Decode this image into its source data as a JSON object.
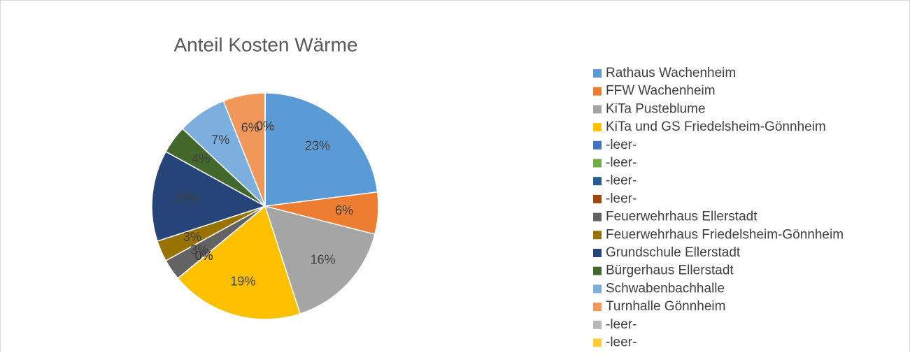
{
  "chart_data": {
    "type": "pie",
    "title": "Anteil Kosten Wärme",
    "categories": [
      "Rathaus Wachenheim",
      "FFW Wachenheim",
      "KiTa Pusteblume",
      "KiTa und GS Friedelsheim-Gönnheim",
      "-leer-",
      "-leer-",
      "-leer-",
      "-leer-",
      "Feuerwehrhaus Ellerstadt",
      "Feuerwehrhaus Friedelsheim-Gönnheim",
      "Grundschule Ellerstadt",
      "Bürgerhaus Ellerstadt",
      "Schwabenbachhalle",
      "Turnhalle Gönnheim",
      "-leer-",
      "-leer-"
    ],
    "values": [
      23,
      6,
      16,
      19,
      0,
      0,
      0,
      0,
      3,
      3,
      13,
      4,
      7,
      6,
      0,
      0
    ],
    "value_labels": [
      "23%",
      "6%",
      "16%",
      "19%",
      "0%",
      "0%",
      "0%",
      "0%",
      "3%",
      "3%",
      "13%",
      "4%",
      "7%",
      "6%",
      "0%",
      "0%"
    ],
    "colors": [
      "#5b9bd5",
      "#ed7d31",
      "#a5a5a5",
      "#ffc000",
      "#4472c4",
      "#70ad47",
      "#255e91",
      "#9e480e",
      "#636363",
      "#997300",
      "#264478",
      "#43682b",
      "#7cafdd",
      "#f1975a",
      "#b7b7b7",
      "#ffcd33"
    ],
    "legend": "right"
  }
}
